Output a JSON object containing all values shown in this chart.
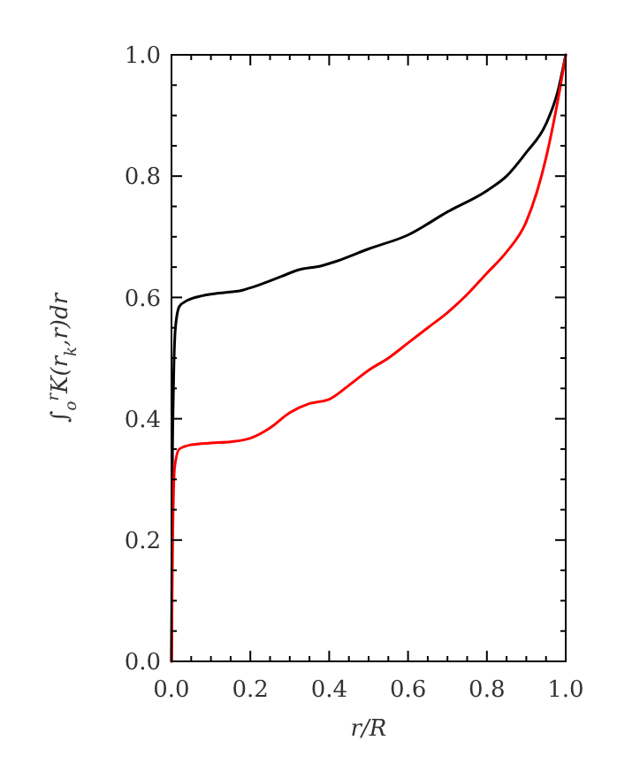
{
  "chart_data": {
    "type": "line",
    "xlabel": "r/R",
    "ylabel": "∫$_{o}$$^{r}$K(r$_{k}$,r)dr",
    "series": [
      {
        "color": "#000000",
        "x": [
          0,
          0.002,
          0.005,
          0.01,
          0.02,
          0.04,
          0.08,
          0.12,
          0.18,
          0.22,
          0.28,
          0.32,
          0.38,
          0.42,
          0.5,
          0.6,
          0.7,
          0.8,
          0.85,
          0.9,
          0.95,
          0.98,
          1.0
        ],
        "values": [
          0,
          0.3,
          0.45,
          0.55,
          0.585,
          0.595,
          0.603,
          0.607,
          0.612,
          0.62,
          0.635,
          0.645,
          0.652,
          0.66,
          0.68,
          0.703,
          0.741,
          0.776,
          0.8,
          0.839,
          0.886,
          0.94,
          1.0
        ]
      },
      {
        "color": "#ff0000",
        "x": [
          0,
          0.003,
          0.008,
          0.02,
          0.05,
          0.1,
          0.15,
          0.2,
          0.25,
          0.3,
          0.35,
          0.4,
          0.45,
          0.5,
          0.55,
          0.6,
          0.65,
          0.7,
          0.75,
          0.8,
          0.85,
          0.9,
          0.95,
          0.98,
          1.0
        ],
        "values": [
          0,
          0.2,
          0.32,
          0.35,
          0.357,
          0.36,
          0.362,
          0.368,
          0.385,
          0.41,
          0.425,
          0.432,
          0.455,
          0.48,
          0.5,
          0.525,
          0.55,
          0.575,
          0.605,
          0.64,
          0.675,
          0.725,
          0.83,
          0.925,
          1.0
        ]
      }
    ],
    "xlim": [
      0,
      1
    ],
    "ylim": [
      0,
      1
    ],
    "xticks": [
      {
        "value": 0,
        "label": "0.0"
      },
      {
        "value": 0.05,
        "label": null
      },
      {
        "value": 0.1,
        "label": null
      },
      {
        "value": 0.15,
        "label": null
      },
      0.2,
      {
        "value": 0.25,
        "label": null
      },
      {
        "value": 0.3,
        "label": null
      },
      {
        "value": 0.35,
        "label": null
      },
      0.4,
      {
        "value": 0.45,
        "label": null
      },
      {
        "value": 0.5,
        "label": null
      },
      {
        "value": 0.55,
        "label": null
      },
      0.6,
      {
        "value": 0.65,
        "label": null
      },
      {
        "value": 0.7,
        "label": null
      },
      {
        "value": 0.75,
        "label": null
      },
      0.8,
      {
        "value": 0.85,
        "label": null
      },
      {
        "value": 0.9,
        "label": null
      },
      {
        "value": 0.95,
        "label": null
      },
      {
        "value": 1,
        "label": "1.0"
      }
    ],
    "yticks": [
      {
        "value": 0,
        "label": "0.0"
      },
      {
        "value": 0.05,
        "label": null
      },
      {
        "value": 0.1,
        "label": null
      },
      {
        "value": 0.15,
        "label": null
      },
      0.2,
      {
        "value": 0.25,
        "label": null
      },
      {
        "value": 0.3,
        "label": null
      },
      {
        "value": 0.35,
        "label": null
      },
      0.4,
      {
        "value": 0.45,
        "label": null
      },
      {
        "value": 0.5,
        "label": null
      },
      {
        "value": 0.55,
        "label": null
      },
      0.6,
      {
        "value": 0.65,
        "label": null
      },
      {
        "value": 0.7,
        "label": null
      },
      {
        "value": 0.75,
        "label": null
      },
      0.8,
      {
        "value": 0.85,
        "label": null
      },
      {
        "value": 0.9,
        "label": null
      },
      {
        "value": 0.95,
        "label": null
      },
      {
        "value": 1,
        "label": "1.0"
      }
    ]
  }
}
